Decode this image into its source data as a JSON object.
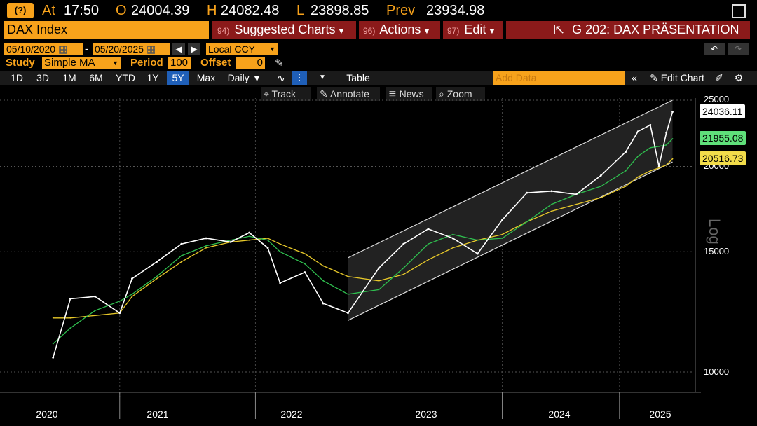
{
  "quote": {
    "at_label": "At",
    "at_value": "17:50",
    "open_label": "O",
    "open_value": "24004.39",
    "high_label": "H",
    "high_value": "24082.48",
    "low_label": "L",
    "low_value": "23898.85",
    "prev_label": "Prev",
    "prev_value": "23934.98"
  },
  "title_bar": {
    "security": "DAX Index",
    "suggested_num": "94)",
    "suggested_label": "Suggested Charts",
    "actions_num": "96)",
    "actions_label": "Actions",
    "edit_num": "97)",
    "edit_label": "Edit",
    "chart_name": "G 202: DAX PRÄSENTATION"
  },
  "range": {
    "start": "05/10/2020",
    "separator": "-",
    "end": "05/20/2025",
    "currency": "Local CCY"
  },
  "study": {
    "study_label": "Study",
    "study_value": "Simple MA",
    "period_label": "Period",
    "period_value": "100",
    "offset_label": "Offset",
    "offset_value": "0"
  },
  "periods": [
    "1D",
    "3D",
    "1M",
    "6M",
    "YTD",
    "1Y",
    "5Y",
    "Max"
  ],
  "active_period": "5Y",
  "frequency": "Daily",
  "table_label": "Table",
  "add_data_placeholder": "Add Data",
  "edit_chart_label": "Edit Chart",
  "tools": {
    "track": "Track",
    "annotate": "Annotate",
    "news": "News",
    "zoom": "Zoom"
  },
  "axis_scale_label": "Log",
  "colors": {
    "accent": "#f7a21b",
    "ma1": "#2fbf4f",
    "ma2": "#e8c92a",
    "price": "#ffffff",
    "channel_fill": "#222222",
    "menu_red": "#8b1a1a",
    "active_blue": "#1f5fb8"
  },
  "chart_data": {
    "type": "line",
    "scale": "log",
    "ylim": [
      9000,
      25500
    ],
    "y_ticks": [
      "25000",
      "20000",
      "15000",
      "10000"
    ],
    "x_ticks": [
      "2020",
      "2021",
      "2022",
      "2023",
      "2024",
      "2025"
    ],
    "last_values": [
      {
        "series": "price",
        "value": "24036.11"
      },
      {
        "series": "ma-short",
        "value": "21955.08"
      },
      {
        "series": "ma-long",
        "value": "20516.73"
      }
    ],
    "x": [
      2020.36,
      2020.5,
      2020.7,
      2020.9,
      2021.0,
      2021.2,
      2021.4,
      2021.6,
      2021.8,
      2021.95,
      2022.1,
      2022.2,
      2022.4,
      2022.55,
      2022.75,
      2023.0,
      2023.2,
      2023.4,
      2023.6,
      2023.8,
      2024.0,
      2024.2,
      2024.4,
      2024.6,
      2024.8,
      2025.0,
      2025.1,
      2025.2,
      2025.27,
      2025.33,
      2025.38
    ],
    "series": [
      {
        "name": "price",
        "values": [
          10500,
          12800,
          12900,
          12200,
          13700,
          14500,
          15400,
          15700,
          15500,
          16000,
          15200,
          13500,
          14000,
          12600,
          12200,
          14200,
          15400,
          16200,
          15700,
          14900,
          16700,
          18300,
          18400,
          18200,
          19400,
          21000,
          22500,
          23000,
          20000,
          22400,
          24036
        ]
      },
      {
        "name": "ma-short",
        "values": [
          11000,
          11600,
          12300,
          12700,
          13000,
          13800,
          14800,
          15300,
          15600,
          15800,
          15600,
          15000,
          14400,
          13600,
          13000,
          13200,
          14200,
          15400,
          15900,
          15600,
          15700,
          16600,
          17600,
          18200,
          18700,
          19700,
          20700,
          21300,
          21400,
          21500,
          21955
        ]
      },
      {
        "name": "ma-long",
        "values": [
          12000,
          12000,
          12100,
          12200,
          12900,
          13700,
          14500,
          15200,
          15500,
          15600,
          15700,
          15400,
          14900,
          14300,
          13800,
          13600,
          13900,
          14600,
          15200,
          15600,
          15900,
          16600,
          17200,
          17600,
          18000,
          18700,
          19300,
          19700,
          19900,
          20100,
          20517
        ]
      }
    ],
    "channel": {
      "lower": [
        [
          2022.75,
          11900
        ],
        [
          2025.38,
          20300
        ]
      ],
      "upper": [
        [
          2022.75,
          14700
        ],
        [
          2025.38,
          25000
        ]
      ]
    }
  }
}
